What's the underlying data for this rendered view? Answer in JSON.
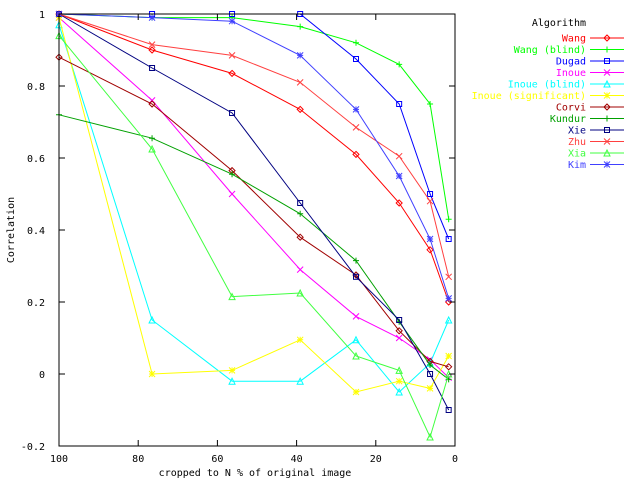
{
  "chart_data": {
    "type": "line",
    "title": "",
    "xlabel": "cropped to N % of original image",
    "ylabel": "Correlation",
    "xlim": [
      100,
      0
    ],
    "ylim": [
      -0.2,
      1
    ],
    "x_reversed": true,
    "x_ticks": [
      100,
      80,
      60,
      40,
      20,
      0
    ],
    "x_tick_labels": [
      "100",
      "80",
      "60",
      "40",
      "20",
      "0"
    ],
    "y_ticks": [
      -0.2,
      0,
      0.2,
      0.4,
      0.6,
      0.8,
      1
    ],
    "y_tick_labels": [
      "-0.2",
      "0",
      "0.2",
      "0.4",
      "0.6",
      "0.8",
      "1"
    ],
    "grid": false,
    "legend_title": "Algorithm",
    "legend_position": "right, outside plot",
    "x": [
      100,
      76.5,
      56.3,
      39.1,
      25,
      14.1,
      6.3,
      1.6
    ],
    "series": [
      {
        "name": "Wang",
        "color": "#ff0000",
        "marker": "diamond",
        "values": [
          1.0,
          0.9,
          0.835,
          0.735,
          0.61,
          0.475,
          0.345,
          0.2
        ]
      },
      {
        "name": "Wang (blind)",
        "color": "#00ff00",
        "marker": "plus",
        "values": [
          1.0,
          0.99,
          0.99,
          0.965,
          0.92,
          0.86,
          0.75,
          0.43
        ]
      },
      {
        "name": "Dugad",
        "color": "#0000ff",
        "marker": "square",
        "values": [
          1.0,
          1.0,
          1.0,
          1.0,
          0.875,
          0.75,
          0.5,
          0.375
        ]
      },
      {
        "name": "Inoue",
        "color": "#ff00ff",
        "marker": "x",
        "values": [
          0.99,
          0.76,
          0.5,
          0.29,
          0.16,
          0.1,
          0.04,
          -0.01
        ]
      },
      {
        "name": "Inoue (blind)",
        "color": "#00ffff",
        "marker": "triangle",
        "values": [
          0.97,
          0.15,
          -0.02,
          -0.02,
          0.095,
          -0.05,
          0.03,
          0.15
        ]
      },
      {
        "name": "Inoue (significant)",
        "color": "#ffff00",
        "marker": "star",
        "values": [
          0.99,
          0.0,
          0.01,
          0.095,
          -0.05,
          -0.02,
          -0.04,
          0.05
        ]
      },
      {
        "name": "Corvi",
        "color": "#a00000",
        "marker": "diamond",
        "values": [
          0.88,
          0.75,
          0.565,
          0.38,
          0.275,
          0.12,
          0.035,
          0.02
        ]
      },
      {
        "name": "Kundur",
        "color": "#00a000",
        "marker": "plus",
        "values": [
          0.72,
          0.655,
          0.555,
          0.445,
          0.315,
          0.145,
          0.025,
          -0.015
        ]
      },
      {
        "name": "Xie",
        "color": "#000080",
        "marker": "square",
        "values": [
          1.0,
          0.85,
          0.725,
          0.475,
          0.27,
          0.15,
          0.0,
          -0.1
        ]
      },
      {
        "name": "Zhu",
        "color": "#ff4040",
        "marker": "x",
        "values": [
          1.0,
          0.915,
          0.885,
          0.81,
          0.685,
          0.605,
          0.48,
          0.27
        ]
      },
      {
        "name": "Xia",
        "color": "#40ff40",
        "marker": "triangle",
        "values": [
          0.94,
          0.625,
          0.215,
          0.225,
          0.05,
          0.01,
          -0.175,
          0.0
        ]
      },
      {
        "name": "Kim",
        "color": "#4040ff",
        "marker": "star",
        "values": [
          1.0,
          0.99,
          0.98,
          0.885,
          0.735,
          0.55,
          0.375,
          0.21
        ]
      }
    ]
  }
}
